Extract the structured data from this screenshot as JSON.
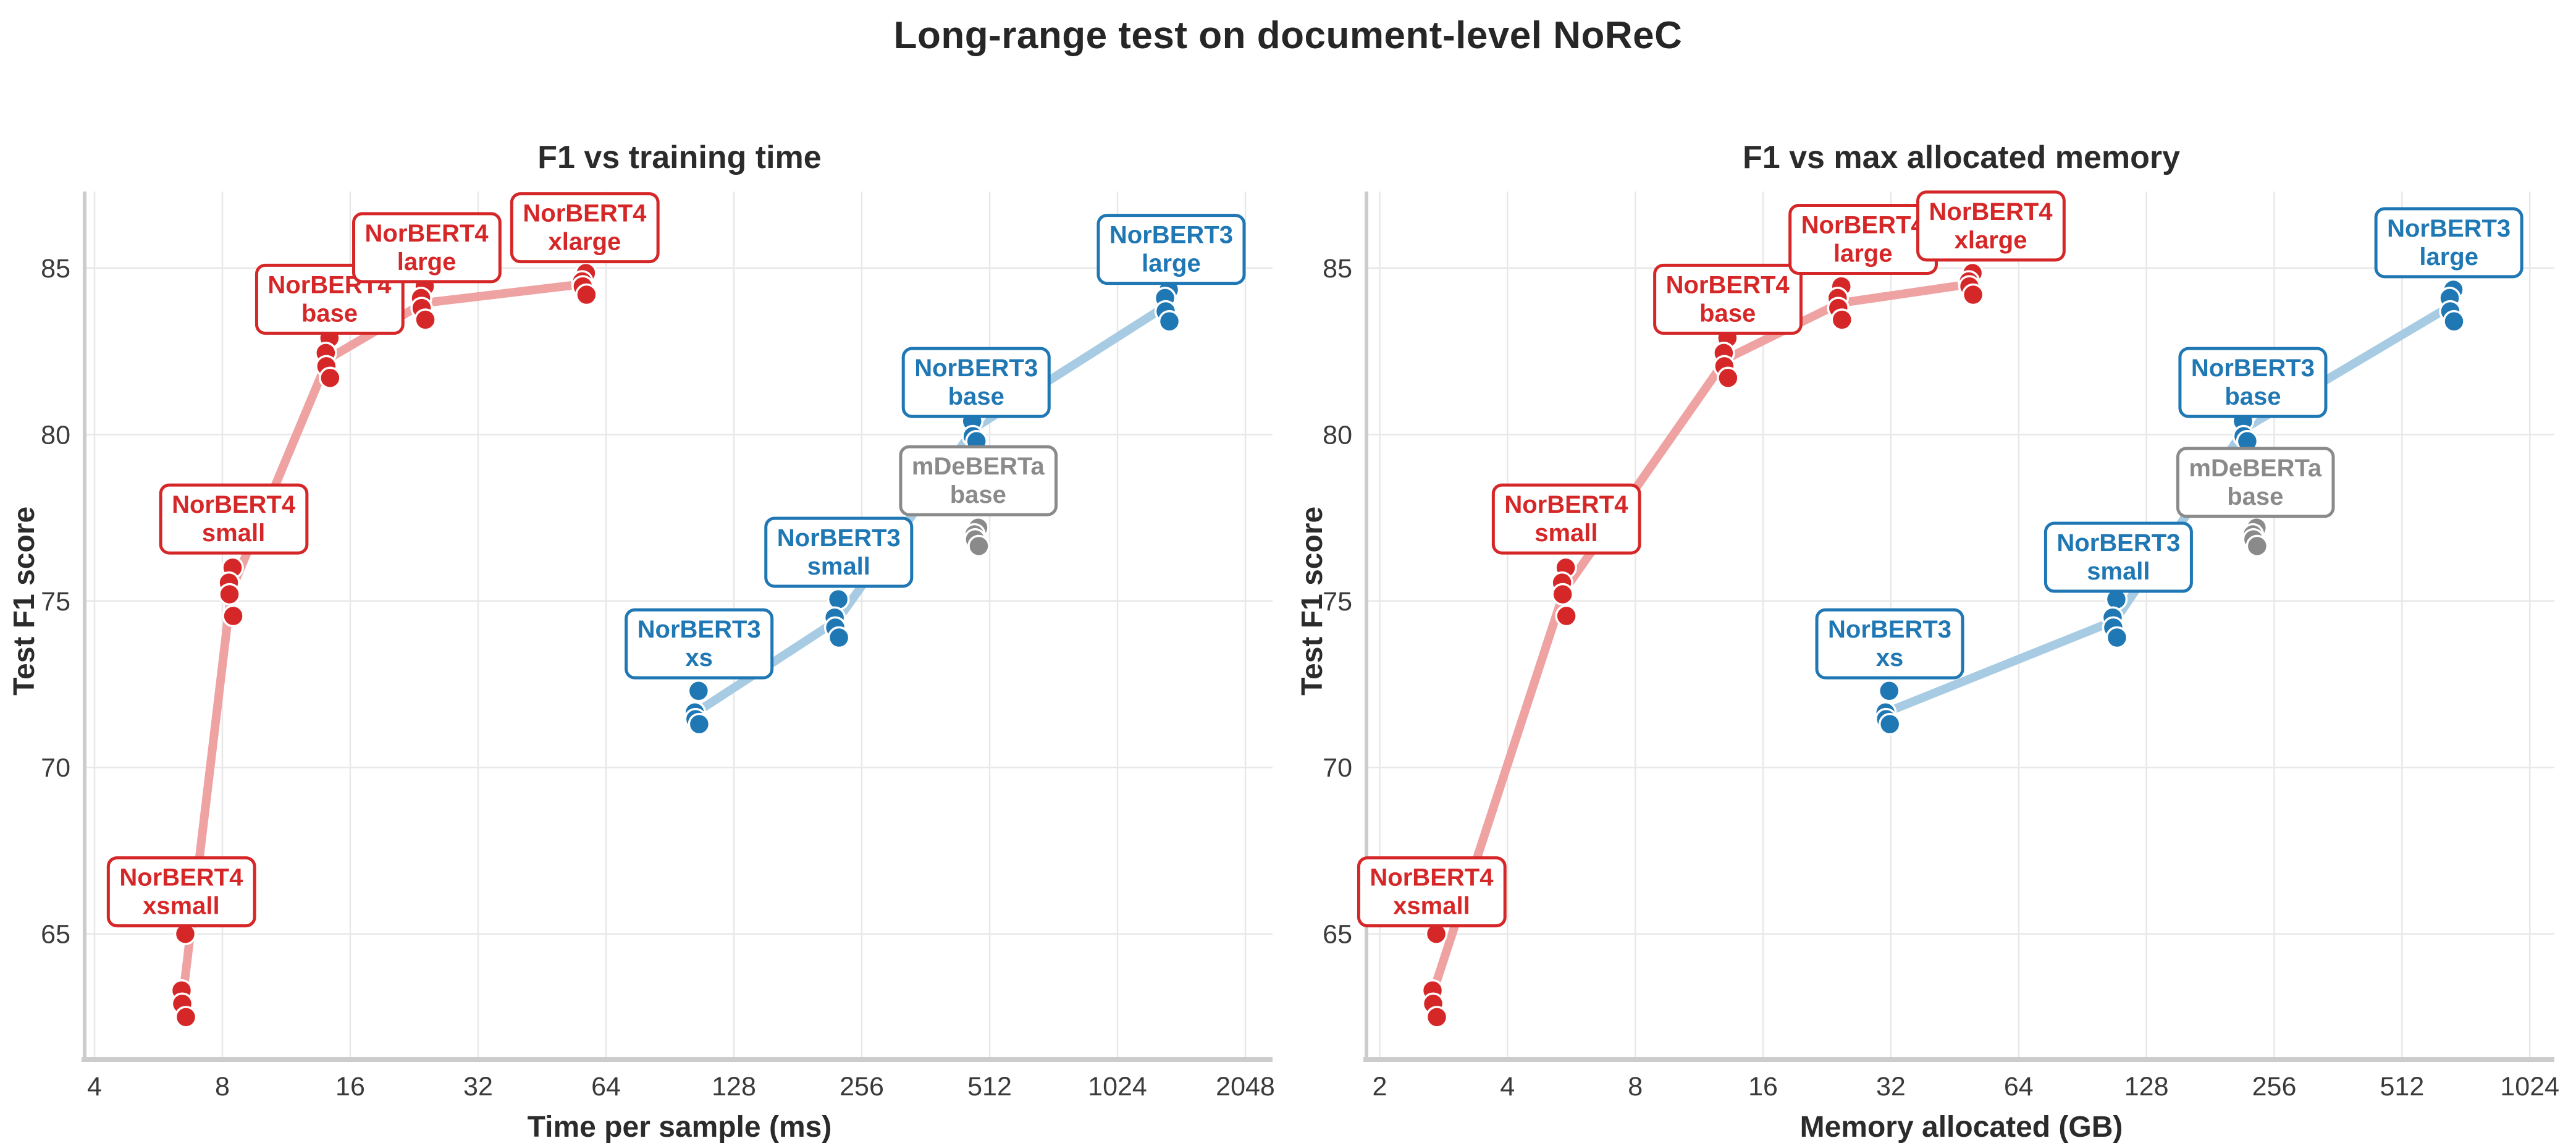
{
  "page": {
    "main_title": "Long-range test on document-level NoReC"
  },
  "chart_data": [
    {
      "type": "scatter",
      "title": "F1 vs training time",
      "xlabel": "Time per sample (ms)",
      "ylabel": "Test F1 score",
      "x_scale": "log2",
      "x_ticks": [
        4,
        8,
        16,
        32,
        64,
        128,
        256,
        512,
        1024,
        2048
      ],
      "x_range": [
        3.83,
        2373
      ],
      "y_ticks": [
        65,
        70,
        75,
        80,
        85
      ],
      "y_range": [
        61.3,
        87.3
      ],
      "grid": true,
      "colors": {
        "grid": "#e8e8e8",
        "spine": "#cccccc",
        "tick_text": "#3a3a3a",
        "title_text": "#2b2b2b"
      },
      "series": [
        {
          "name": "NorBERT4",
          "color": "#d62728",
          "line_color": "#efa2a2",
          "draw_line": true,
          "clusters": [
            {
              "size": "xsmall",
              "label": [
                "NorBERT4",
                "xsmall"
              ],
              "x": 6.5,
              "f1": [
                65.0,
                63.3,
                62.9,
                62.5
              ],
              "label_at": [
                6.4,
                66.3
              ]
            },
            {
              "size": "small",
              "label": [
                "NorBERT4",
                "small"
              ],
              "x": 8.4,
              "f1": [
                76.0,
                75.55,
                75.2,
                74.55
              ],
              "label_at": [
                8.5,
                77.5
              ]
            },
            {
              "size": "base",
              "label": [
                "NorBERT4",
                "base"
              ],
              "x": 14.2,
              "f1": [
                82.9,
                82.45,
                82.05,
                81.7
              ],
              "label_at": [
                14.3,
                84.1
              ]
            },
            {
              "size": "large",
              "label": [
                "NorBERT4",
                "large"
              ],
              "x": 23.8,
              "f1": [
                84.45,
                84.1,
                83.8,
                83.45
              ],
              "label_at": [
                24.2,
                85.65
              ]
            },
            {
              "size": "xlarge",
              "label": [
                "NorBERT4",
                "xlarge"
              ],
              "x": 57.0,
              "f1": [
                84.85,
                84.6,
                84.45,
                84.2
              ],
              "label_at": [
                57.0,
                86.25
              ]
            }
          ]
        },
        {
          "name": "NorBERT3",
          "color": "#1f77b4",
          "line_color": "#a6cbe3",
          "draw_line": true,
          "clusters": [
            {
              "size": "xs",
              "label": [
                "NorBERT3",
                "xs"
              ],
              "x": 105,
              "f1": [
                72.3,
                71.65,
                71.45,
                71.3
              ],
              "label_at": [
                106,
                73.75
              ]
            },
            {
              "size": "small",
              "label": [
                "NorBERT3",
                "small"
              ],
              "x": 224,
              "f1": [
                75.05,
                74.5,
                74.2,
                73.9
              ],
              "label_at": [
                226,
                76.5
              ]
            },
            {
              "size": "base",
              "label": [
                "NorBERT3",
                "base"
              ],
              "x": 472,
              "f1": [
                80.65,
                80.4,
                79.95,
                79.8
              ],
              "label_at": [
                476,
                81.6
              ]
            },
            {
              "size": "large",
              "label": [
                "NorBERT3",
                "large"
              ],
              "x": 1343,
              "f1": [
                84.35,
                84.1,
                83.7,
                83.4
              ],
              "label_at": [
                1370,
                85.6
              ]
            }
          ]
        },
        {
          "name": "mDeBERTa",
          "color": "#8a8a8a",
          "line_color": "#c6c6c6",
          "draw_line": false,
          "clusters": [
            {
              "size": "base",
              "label": [
                "mDeBERTa",
                "base"
              ],
              "x": 478,
              "f1": [
                77.2,
                77.0,
                76.85,
                76.65
              ],
              "label_at": [
                481,
                78.65
              ]
            }
          ]
        }
      ]
    },
    {
      "type": "scatter",
      "title": "F1 vs max allocated memory",
      "xlabel": "Memory allocated (GB)",
      "ylabel": "Test F1 score",
      "x_scale": "log2",
      "x_ticks": [
        2,
        4,
        8,
        16,
        32,
        64,
        128,
        256,
        512,
        1024
      ],
      "x_range": [
        1.88,
        1170
      ],
      "y_ticks": [
        65,
        70,
        75,
        80,
        85
      ],
      "y_range": [
        61.3,
        87.3
      ],
      "grid": true,
      "colors": {
        "grid": "#e8e8e8",
        "spine": "#cccccc",
        "tick_text": "#3a3a3a",
        "title_text": "#2b2b2b"
      },
      "series": [
        {
          "name": "NorBERT4",
          "color": "#d62728",
          "line_color": "#efa2a2",
          "draw_line": true,
          "clusters": [
            {
              "size": "xsmall",
              "label": [
                "NorBERT4",
                "xsmall"
              ],
              "x": 2.7,
              "f1": [
                65.0,
                63.3,
                62.9,
                62.5
              ],
              "label_at": [
                2.65,
                66.3
              ]
            },
            {
              "size": "small",
              "label": [
                "NorBERT4",
                "small"
              ],
              "x": 5.45,
              "f1": [
                76.0,
                75.55,
                75.2,
                74.55
              ],
              "label_at": [
                5.5,
                77.5
              ]
            },
            {
              "size": "base",
              "label": [
                "NorBERT4",
                "base"
              ],
              "x": 13.1,
              "f1": [
                82.9,
                82.45,
                82.05,
                81.7
              ],
              "label_at": [
                13.2,
                84.1
              ]
            },
            {
              "size": "large",
              "label": [
                "NorBERT4",
                "large"
              ],
              "x": 24.3,
              "f1": [
                84.45,
                84.1,
                83.8,
                83.45
              ],
              "label_at": [
                27.5,
                85.9
              ]
            },
            {
              "size": "xlarge",
              "label": [
                "NorBERT4",
                "xlarge"
              ],
              "x": 49.5,
              "f1": [
                84.85,
                84.6,
                84.45,
                84.2
              ],
              "label_at": [
                55.0,
                86.3
              ]
            }
          ]
        },
        {
          "name": "NorBERT3",
          "color": "#1f77b4",
          "line_color": "#a6cbe3",
          "draw_line": true,
          "clusters": [
            {
              "size": "xs",
              "label": [
                "NorBERT3",
                "xs"
              ],
              "x": 31.5,
              "f1": [
                72.3,
                71.65,
                71.45,
                71.3
              ],
              "label_at": [
                31.8,
                73.75
              ]
            },
            {
              "size": "small",
              "label": [
                "NorBERT3",
                "small"
              ],
              "x": 108,
              "f1": [
                75.05,
                74.5,
                74.2,
                73.9
              ],
              "label_at": [
                110,
                76.35
              ]
            },
            {
              "size": "base",
              "label": [
                "NorBERT3",
                "base"
              ],
              "x": 219,
              "f1": [
                80.65,
                80.4,
                79.95,
                79.8
              ],
              "label_at": [
                228,
                81.6
              ]
            },
            {
              "size": "large",
              "label": [
                "NorBERT3",
                "large"
              ],
              "x": 672,
              "f1": [
                84.35,
                84.1,
                83.7,
                83.4
              ],
              "label_at": [
                660,
                85.8
              ]
            }
          ]
        },
        {
          "name": "mDeBERTa",
          "color": "#8a8a8a",
          "line_color": "#c6c6c6",
          "draw_line": false,
          "clusters": [
            {
              "size": "base",
              "label": [
                "mDeBERTa",
                "base"
              ],
              "x": 231,
              "f1": [
                77.2,
                77.0,
                76.85,
                76.65
              ],
              "label_at": [
                231,
                78.6
              ]
            }
          ]
        }
      ]
    }
  ]
}
